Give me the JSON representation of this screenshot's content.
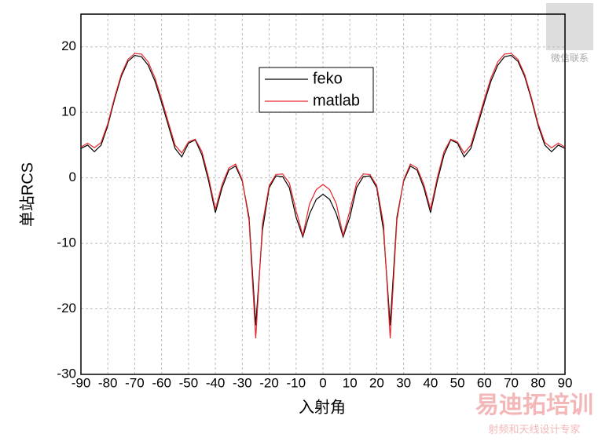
{
  "chart_data": {
    "type": "line",
    "x": [
      -90,
      -87.5,
      -85,
      -82.5,
      -80,
      -77.5,
      -75,
      -72.5,
      -70,
      -67.5,
      -65,
      -62.5,
      -60,
      -57.5,
      -55,
      -52.5,
      -50,
      -47.5,
      -45,
      -42.5,
      -40,
      -37.5,
      -35,
      -32.5,
      -30,
      -27.5,
      -25,
      -22.5,
      -20,
      -17.5,
      -15,
      -12.5,
      -10,
      -7.5,
      -5,
      -2.5,
      0,
      2.5,
      5,
      7.5,
      10,
      12.5,
      15,
      17.5,
      20,
      22.5,
      25,
      27.5,
      30,
      32.5,
      35,
      37.5,
      40,
      42.5,
      45,
      47.5,
      50,
      52.5,
      55,
      57.5,
      60,
      62.5,
      65,
      67.5,
      70,
      72.5,
      75,
      77.5,
      80,
      82.5,
      85,
      87.5,
      90
    ],
    "series": [
      {
        "name": "feko",
        "color": "#000000",
        "values": [
          4.5,
          5,
          4,
          5,
          8,
          12,
          15.5,
          17.8,
          18.7,
          18.5,
          17.2,
          14.8,
          11.5,
          8,
          4.5,
          3.2,
          5.3,
          5.8,
          3.5,
          -0.5,
          -5.3,
          -1.5,
          1.2,
          1.8,
          -0.5,
          -6,
          -22.5,
          -8,
          -1.5,
          0.3,
          0.2,
          -1.5,
          -6,
          -9,
          -5.5,
          -3.3,
          -2.5,
          -3.3,
          -5.5,
          -9,
          -6,
          -1.5,
          0.2,
          0.3,
          -1.5,
          -8,
          -22.5,
          -6,
          -0.5,
          1.8,
          1.2,
          -1.5,
          -5.3,
          -0.5,
          3.5,
          5.8,
          5.3,
          3.2,
          4.5,
          8,
          11.5,
          14.8,
          17.2,
          18.5,
          18.7,
          17.8,
          15.5,
          12,
          8,
          5,
          4,
          5,
          4.5
        ]
      },
      {
        "name": "matlab",
        "color": "#e8242a",
        "values": [
          4.7,
          5.3,
          4.6,
          5.4,
          8.3,
          12.3,
          15.8,
          18.1,
          19,
          18.9,
          17.7,
          15.3,
          12,
          8.5,
          5,
          3.8,
          5.5,
          5.9,
          4,
          0,
          -4.8,
          -1,
          1.5,
          2.1,
          -0.3,
          -6.5,
          -24.5,
          -7,
          -1.2,
          0.5,
          0.6,
          -0.8,
          -5,
          -8.8,
          -4,
          -1.8,
          -1,
          -1.8,
          -4,
          -8.8,
          -5,
          -0.8,
          0.6,
          0.5,
          -1.2,
          -7,
          -24.5,
          -6.5,
          -0.3,
          2.1,
          1.5,
          -1,
          -4.8,
          0,
          4,
          5.9,
          5.5,
          3.8,
          5,
          8.5,
          12,
          15.3,
          17.7,
          18.9,
          19,
          18.1,
          15.8,
          12.3,
          8.3,
          5.4,
          4.6,
          5.3,
          4.7
        ]
      }
    ],
    "x_label": "入射角",
    "y_label": "单站RCS",
    "xlim": [
      -90,
      90
    ],
    "xticks": [
      -90,
      -80,
      -70,
      -60,
      -50,
      -40,
      -30,
      -20,
      -10,
      0,
      10,
      20,
      30,
      40,
      50,
      60,
      70,
      80,
      90
    ],
    "ylim": [
      -30,
      25
    ],
    "yticks": [
      -30,
      -20,
      -10,
      0,
      10,
      20
    ],
    "grid": true,
    "legend": "top"
  },
  "watermark": {
    "contact": "微信联系",
    "brand": "易迪拓培训",
    "slogan": "射频和天线设计专家"
  }
}
